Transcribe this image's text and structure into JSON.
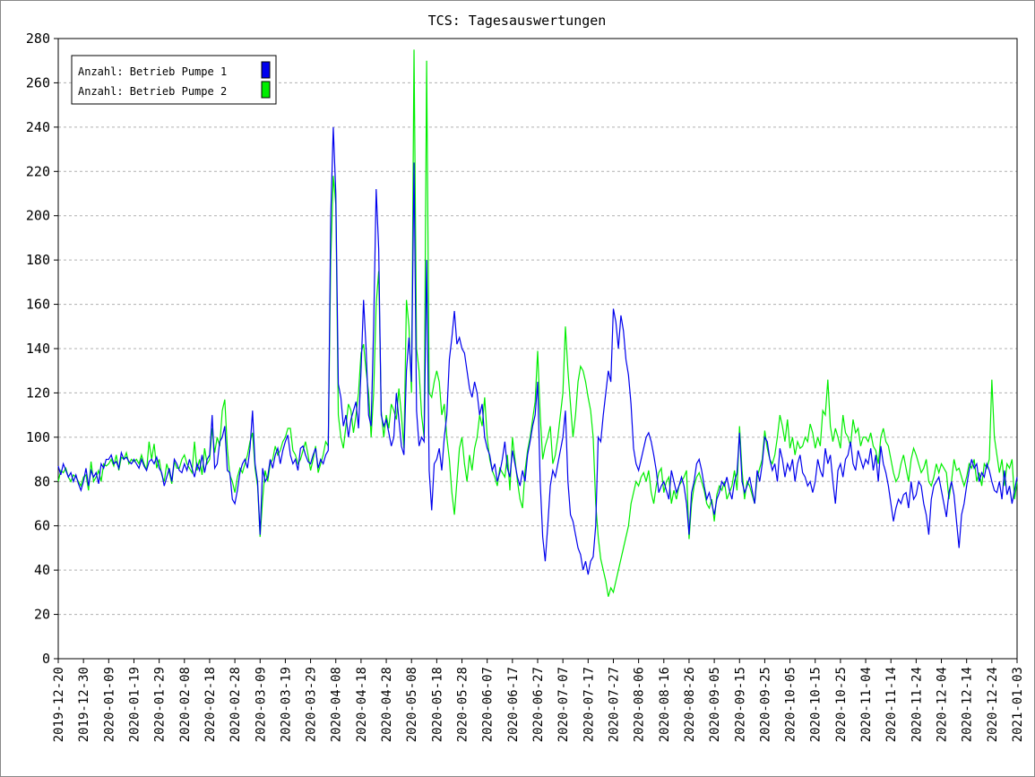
{
  "chart_data": {
    "type": "line",
    "title": "TCS: Tagesauswertungen",
    "legend": "upper left",
    "grid": true,
    "ylim": [
      0,
      280
    ],
    "yticks": [
      0,
      20,
      40,
      60,
      80,
      100,
      120,
      140,
      160,
      180,
      200,
      220,
      240,
      260,
      280
    ],
    "xlim": [
      "2019-12-20",
      "2021-01-03"
    ],
    "xticks": [
      "2019-12-20",
      "2019-12-30",
      "2020-01-09",
      "2020-01-19",
      "2020-01-29",
      "2020-02-08",
      "2020-02-18",
      "2020-02-28",
      "2020-03-09",
      "2020-03-19",
      "2020-03-29",
      "2020-04-08",
      "2020-04-18",
      "2020-04-28",
      "2020-05-08",
      "2020-05-18",
      "2020-05-28",
      "2020-06-07",
      "2020-06-17",
      "2020-06-27",
      "2020-07-07",
      "2020-07-17",
      "2020-07-27",
      "2020-08-06",
      "2020-08-16",
      "2020-08-26",
      "2020-09-05",
      "2020-09-15",
      "2020-09-25",
      "2020-10-05",
      "2020-10-15",
      "2020-10-25",
      "2020-11-04",
      "2020-11-14",
      "2020-11-24",
      "2020-12-04",
      "2020-12-14",
      "2020-12-24",
      "2021-01-03"
    ],
    "x": [
      "2019-12-20",
      "2019-12-21",
      "2019-12-22",
      "2019-12-23",
      "2019-12-24",
      "2019-12-25",
      "2019-12-26",
      "2019-12-27",
      "2019-12-28",
      "2019-12-29",
      "2019-12-30",
      "2019-12-31",
      "2020-01-01",
      "2020-01-02",
      "2020-01-03",
      "2020-01-04",
      "2020-01-05",
      "2020-01-06",
      "2020-01-07",
      "2020-01-08",
      "2020-01-09",
      "2020-01-10",
      "2020-01-11",
      "2020-01-12",
      "2020-01-13",
      "2020-01-14",
      "2020-01-15",
      "2020-01-16",
      "2020-01-17",
      "2020-01-18",
      "2020-01-19",
      "2020-01-20",
      "2020-01-21",
      "2020-01-22",
      "2020-01-23",
      "2020-01-24",
      "2020-01-25",
      "2020-01-26",
      "2020-01-27",
      "2020-01-28",
      "2020-01-29",
      "2020-01-30",
      "2020-01-31",
      "2020-02-01",
      "2020-02-02",
      "2020-02-03",
      "2020-02-04",
      "2020-02-05",
      "2020-02-06",
      "2020-02-07",
      "2020-02-08",
      "2020-02-09",
      "2020-02-10",
      "2020-02-11",
      "2020-02-12",
      "2020-02-13",
      "2020-02-14",
      "2020-02-15",
      "2020-02-16",
      "2020-02-17",
      "2020-02-18",
      "2020-02-19",
      "2020-02-20",
      "2020-02-21",
      "2020-02-22",
      "2020-02-23",
      "2020-02-24",
      "2020-02-25",
      "2020-02-26",
      "2020-02-27",
      "2020-02-28",
      "2020-02-29",
      "2020-03-01",
      "2020-03-02",
      "2020-03-03",
      "2020-03-04",
      "2020-03-05",
      "2020-03-06",
      "2020-03-07",
      "2020-03-08",
      "2020-03-09",
      "2020-03-10",
      "2020-03-11",
      "2020-03-12",
      "2020-03-13",
      "2020-03-14",
      "2020-03-15",
      "2020-03-16",
      "2020-03-17",
      "2020-03-18",
      "2020-03-19",
      "2020-03-20",
      "2020-03-21",
      "2020-03-22",
      "2020-03-23",
      "2020-03-24",
      "2020-03-25",
      "2020-03-26",
      "2020-03-27",
      "2020-03-28",
      "2020-03-29",
      "2020-03-30",
      "2020-03-31",
      "2020-04-01",
      "2020-04-02",
      "2020-04-03",
      "2020-04-04",
      "2020-04-05",
      "2020-04-06",
      "2020-04-07",
      "2020-04-08",
      "2020-04-09",
      "2020-04-10",
      "2020-04-11",
      "2020-04-12",
      "2020-04-13",
      "2020-04-14",
      "2020-04-15",
      "2020-04-16",
      "2020-04-17",
      "2020-04-18",
      "2020-04-19",
      "2020-04-20",
      "2020-04-21",
      "2020-04-22",
      "2020-04-23",
      "2020-04-24",
      "2020-04-25",
      "2020-04-26",
      "2020-04-27",
      "2020-04-28",
      "2020-04-29",
      "2020-04-30",
      "2020-05-01",
      "2020-05-02",
      "2020-05-03",
      "2020-05-04",
      "2020-05-05",
      "2020-05-06",
      "2020-05-07",
      "2020-05-08",
      "2020-05-09",
      "2020-05-10",
      "2020-05-11",
      "2020-05-12",
      "2020-05-13",
      "2020-05-14",
      "2020-05-15",
      "2020-05-16",
      "2020-05-17",
      "2020-05-18",
      "2020-05-19",
      "2020-05-20",
      "2020-05-21",
      "2020-05-22",
      "2020-05-23",
      "2020-05-24",
      "2020-05-25",
      "2020-05-26",
      "2020-05-27",
      "2020-05-28",
      "2020-05-29",
      "2020-05-30",
      "2020-05-31",
      "2020-06-01",
      "2020-06-02",
      "2020-06-03",
      "2020-06-04",
      "2020-06-05",
      "2020-06-06",
      "2020-06-07",
      "2020-06-08",
      "2020-06-09",
      "2020-06-10",
      "2020-06-11",
      "2020-06-12",
      "2020-06-13",
      "2020-06-14",
      "2020-06-15",
      "2020-06-16",
      "2020-06-17",
      "2020-06-18",
      "2020-06-19",
      "2020-06-20",
      "2020-06-21",
      "2020-06-22",
      "2020-06-23",
      "2020-06-24",
      "2020-06-25",
      "2020-06-26",
      "2020-06-27",
      "2020-06-28",
      "2020-06-29",
      "2020-06-30",
      "2020-07-01",
      "2020-07-02",
      "2020-07-03",
      "2020-07-04",
      "2020-07-05",
      "2020-07-06",
      "2020-07-07",
      "2020-07-08",
      "2020-07-09",
      "2020-07-10",
      "2020-07-11",
      "2020-07-12",
      "2020-07-13",
      "2020-07-14",
      "2020-07-15",
      "2020-07-16",
      "2020-07-17",
      "2020-07-18",
      "2020-07-19",
      "2020-07-20",
      "2020-07-21",
      "2020-07-22",
      "2020-07-23",
      "2020-07-24",
      "2020-07-25",
      "2020-07-26",
      "2020-07-27",
      "2020-07-28",
      "2020-07-29",
      "2020-07-30",
      "2020-07-31",
      "2020-08-01",
      "2020-08-02",
      "2020-08-03",
      "2020-08-04",
      "2020-08-05",
      "2020-08-06",
      "2020-08-07",
      "2020-08-08",
      "2020-08-09",
      "2020-08-10",
      "2020-08-11",
      "2020-08-12",
      "2020-08-13",
      "2020-08-14",
      "2020-08-15",
      "2020-08-16",
      "2020-08-17",
      "2020-08-18",
      "2020-08-19",
      "2020-08-20",
      "2020-08-21",
      "2020-08-22",
      "2020-08-23",
      "2020-08-24",
      "2020-08-25",
      "2020-08-26",
      "2020-08-27",
      "2020-08-28",
      "2020-08-29",
      "2020-08-30",
      "2020-08-31",
      "2020-09-01",
      "2020-09-02",
      "2020-09-03",
      "2020-09-04",
      "2020-09-05",
      "2020-09-06",
      "2020-09-07",
      "2020-09-08",
      "2020-09-09",
      "2020-09-10",
      "2020-09-11",
      "2020-09-12",
      "2020-09-13",
      "2020-09-14",
      "2020-09-15",
      "2020-09-16",
      "2020-09-17",
      "2020-09-18",
      "2020-09-19",
      "2020-09-20",
      "2020-09-21",
      "2020-09-22",
      "2020-09-23",
      "2020-09-24",
      "2020-09-25",
      "2020-09-26",
      "2020-09-27",
      "2020-09-28",
      "2020-09-29",
      "2020-09-30",
      "2020-10-01",
      "2020-10-02",
      "2020-10-03",
      "2020-10-04",
      "2020-10-05",
      "2020-10-06",
      "2020-10-07",
      "2020-10-08",
      "2020-10-09",
      "2020-10-10",
      "2020-10-11",
      "2020-10-12",
      "2020-10-13",
      "2020-10-14",
      "2020-10-15",
      "2020-10-16",
      "2020-10-17",
      "2020-10-18",
      "2020-10-19",
      "2020-10-20",
      "2020-10-21",
      "2020-10-22",
      "2020-10-23",
      "2020-10-24",
      "2020-10-25",
      "2020-10-26",
      "2020-10-27",
      "2020-10-28",
      "2020-10-29",
      "2020-10-30",
      "2020-10-31",
      "2020-11-01",
      "2020-11-02",
      "2020-11-03",
      "2020-11-04",
      "2020-11-05",
      "2020-11-06",
      "2020-11-07",
      "2020-11-08",
      "2020-11-09",
      "2020-11-10",
      "2020-11-11",
      "2020-11-12",
      "2020-11-13",
      "2020-11-14",
      "2020-11-15",
      "2020-11-16",
      "2020-11-17",
      "2020-11-18",
      "2020-11-19",
      "2020-11-20",
      "2020-11-21",
      "2020-11-22",
      "2020-11-23",
      "2020-11-24",
      "2020-11-25",
      "2020-11-26",
      "2020-11-27",
      "2020-11-28",
      "2020-11-29",
      "2020-11-30",
      "2020-12-01",
      "2020-12-02",
      "2020-12-03",
      "2020-12-04",
      "2020-12-05",
      "2020-12-06",
      "2020-12-07",
      "2020-12-08",
      "2020-12-09",
      "2020-12-10",
      "2020-12-11",
      "2020-12-12",
      "2020-12-13",
      "2020-12-14",
      "2020-12-15",
      "2020-12-16",
      "2020-12-17",
      "2020-12-18",
      "2020-12-19",
      "2020-12-20",
      "2020-12-21",
      "2020-12-22",
      "2020-12-23",
      "2020-12-24",
      "2020-12-25",
      "2020-12-26",
      "2020-12-27",
      "2020-12-28",
      "2020-12-29",
      "2020-12-30",
      "2020-12-31",
      "2021-01-01",
      "2021-01-02",
      "2021-01-03"
    ],
    "series": [
      {
        "name": "Anzahl: Betrieb Pumpe 1",
        "color": "#0000ee",
        "values": [
          87,
          83,
          88,
          85,
          82,
          84,
          80,
          83,
          79,
          76,
          80,
          86,
          78,
          85,
          82,
          84,
          79,
          88,
          86,
          90,
          90,
          92,
          88,
          89,
          86,
          93,
          90,
          91,
          89,
          88,
          90,
          88,
          86,
          90,
          87,
          85,
          89,
          90,
          88,
          91,
          86,
          84,
          78,
          82,
          86,
          80,
          90,
          88,
          85,
          84,
          88,
          85,
          90,
          86,
          82,
          88,
          85,
          92,
          84,
          90,
          92,
          110,
          86,
          88,
          98,
          100,
          105,
          85,
          84,
          72,
          70,
          76,
          84,
          88,
          90,
          86,
          95,
          112,
          88,
          80,
          56,
          86,
          80,
          82,
          90,
          86,
          92,
          95,
          88,
          94,
          98,
          101,
          92,
          88,
          90,
          85,
          95,
          96,
          92,
          89,
          88,
          92,
          95,
          86,
          90,
          88,
          92,
          94,
          200,
          240,
          210,
          124,
          118,
          105,
          110,
          100,
          108,
          112,
          116,
          104,
          130,
          162,
          140,
          110,
          105,
          150,
          212,
          185,
          110,
          105,
          108,
          102,
          96,
          100,
          120,
          108,
          96,
          92,
          130,
          145,
          125,
          224,
          112,
          96,
          100,
          98,
          180,
          85,
          67,
          88,
          90,
          95,
          85,
          100,
          110,
          135,
          145,
          157,
          142,
          145,
          140,
          138,
          130,
          122,
          118,
          125,
          120,
          110,
          115,
          100,
          95,
          92,
          85,
          88,
          80,
          84,
          90,
          98,
          86,
          82,
          94,
          88,
          82,
          78,
          85,
          80,
          92,
          98,
          105,
          110,
          125,
          80,
          55,
          44,
          60,
          78,
          85,
          82,
          88,
          94,
          100,
          112,
          80,
          65,
          62,
          56,
          50,
          47,
          40,
          44,
          38,
          44,
          46,
          60,
          100,
          98,
          110,
          120,
          130,
          125,
          158,
          152,
          140,
          155,
          148,
          135,
          128,
          115,
          95,
          88,
          85,
          90,
          95,
          100,
          102,
          98,
          92,
          85,
          75,
          78,
          80,
          76,
          72,
          85,
          80,
          75,
          78,
          82,
          78,
          70,
          56,
          75,
          80,
          88,
          90,
          85,
          78,
          72,
          75,
          70,
          65,
          72,
          75,
          80,
          78,
          82,
          76,
          72,
          80,
          84,
          102,
          80,
          75,
          78,
          82,
          76,
          70,
          85,
          80,
          88,
          100,
          98,
          90,
          85,
          88,
          80,
          95,
          90,
          82,
          88,
          85,
          90,
          80,
          88,
          92,
          84,
          82,
          78,
          80,
          75,
          80,
          90,
          85,
          82,
          95,
          88,
          92,
          80,
          70,
          85,
          88,
          82,
          90,
          92,
          98,
          88,
          85,
          94,
          90,
          86,
          90,
          88,
          95,
          85,
          92,
          80,
          96,
          88,
          84,
          78,
          70,
          62,
          68,
          72,
          70,
          74,
          75,
          68,
          80,
          72,
          74,
          80,
          78,
          70,
          65,
          56,
          72,
          78,
          80,
          82,
          76,
          70,
          64,
          75,
          80,
          74,
          62,
          50,
          65,
          70,
          78,
          85,
          90,
          86,
          88,
          80,
          84,
          82,
          88,
          85,
          80,
          76,
          75,
          80,
          72,
          85,
          74,
          78,
          70,
          76,
          82
        ]
      },
      {
        "name": "Anzahl: Betrieb Pumpe 2",
        "color": "#00ee00",
        "values": [
          80,
          85,
          84,
          86,
          82,
          80,
          83,
          82,
          80,
          78,
          82,
          83,
          76,
          89,
          80,
          82,
          85,
          80,
          88,
          87,
          88,
          90,
          87,
          92,
          85,
          91,
          90,
          93,
          88,
          90,
          89,
          90,
          88,
          92,
          88,
          85,
          98,
          90,
          97,
          86,
          90,
          83,
          80,
          88,
          84,
          79,
          89,
          86,
          86,
          90,
          92,
          88,
          86,
          84,
          98,
          85,
          90,
          83,
          95,
          88,
          90,
          104,
          93,
          100,
          96,
          112,
          117,
          95,
          83,
          80,
          75,
          82,
          86,
          84,
          88,
          92,
          98,
          102,
          86,
          78,
          55,
          72,
          85,
          80,
          88,
          90,
          96,
          92,
          94,
          98,
          100,
          104,
          104,
          94,
          92,
          88,
          90,
          94,
          98,
          92,
          85,
          90,
          96,
          84,
          88,
          92,
          98,
          96,
          180,
          218,
          205,
          110,
          100,
          95,
          105,
          115,
          112,
          102,
          110,
          120,
          138,
          142,
          130,
          120,
          100,
          120,
          160,
          175,
          112,
          100,
          110,
          104,
          115,
          112,
          108,
          122,
          110,
          95,
          162,
          150,
          120,
          275,
          140,
          130,
          110,
          100,
          270,
          120,
          118,
          125,
          130,
          125,
          110,
          115,
          100,
          90,
          75,
          65,
          80,
          95,
          100,
          88,
          80,
          92,
          85,
          95,
          100,
          110,
          105,
          118,
          100,
          90,
          85,
          82,
          78,
          86,
          84,
          82,
          92,
          76,
          100,
          90,
          80,
          72,
          68,
          85,
          94,
          100,
          108,
          116,
          139,
          110,
          90,
          96,
          100,
          105,
          88,
          92,
          100,
          110,
          120,
          150,
          130,
          115,
          100,
          110,
          125,
          132,
          130,
          125,
          118,
          112,
          100,
          70,
          55,
          45,
          40,
          35,
          28,
          32,
          30,
          35,
          40,
          45,
          50,
          55,
          60,
          70,
          75,
          80,
          78,
          82,
          84,
          80,
          85,
          75,
          70,
          78,
          84,
          86,
          75,
          80,
          82,
          70,
          76,
          72,
          78,
          80,
          82,
          85,
          54,
          70,
          78,
          82,
          84,
          80,
          76,
          70,
          68,
          72,
          62,
          74,
          78,
          76,
          80,
          72,
          75,
          78,
          85,
          76,
          105,
          85,
          72,
          80,
          78,
          74,
          70,
          82,
          86,
          90,
          103,
          95,
          90,
          88,
          92,
          100,
          110,
          105,
          98,
          108,
          95,
          100,
          92,
          98,
          95,
          96,
          100,
          98,
          106,
          102,
          95,
          100,
          96,
          112,
          110,
          126,
          105,
          98,
          104,
          100,
          95,
          110,
          102,
          100,
          96,
          108,
          102,
          104,
          96,
          100,
          100,
          98,
          102,
          96,
          94,
          88,
          100,
          104,
          98,
          96,
          90,
          84,
          80,
          82,
          88,
          92,
          86,
          80,
          90,
          95,
          92,
          88,
          84,
          86,
          90,
          80,
          78,
          82,
          88,
          84,
          88,
          86,
          84,
          72,
          80,
          90,
          85,
          86,
          82,
          78,
          82,
          88,
          86,
          90,
          80,
          84,
          78,
          88,
          86,
          90,
          126,
          100,
          92,
          84,
          90,
          78,
          88,
          86,
          90,
          72,
          80
        ]
      }
    ]
  }
}
